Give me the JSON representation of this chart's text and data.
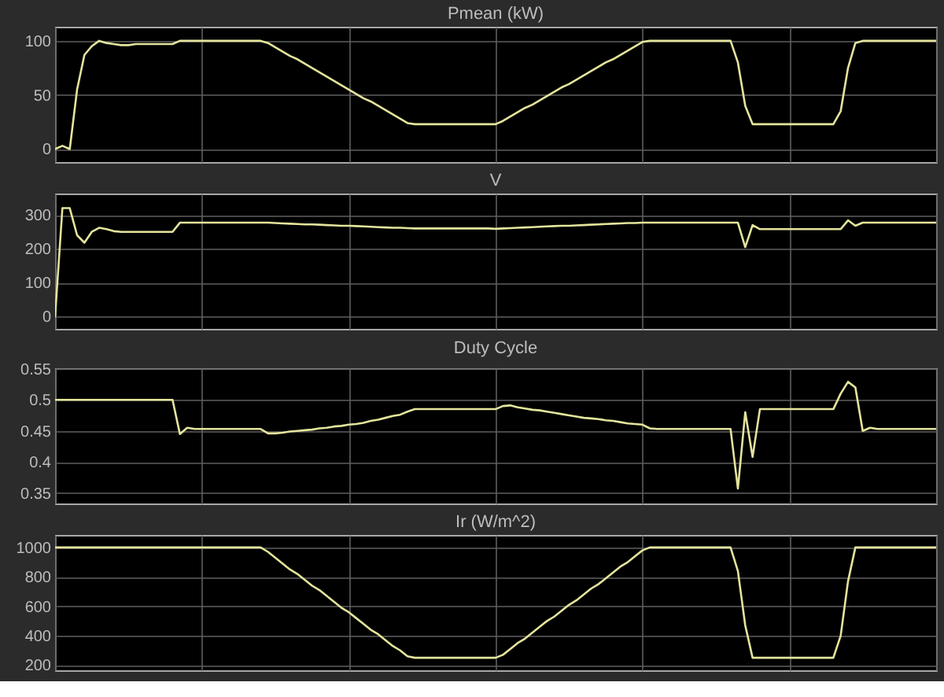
{
  "chart_data": [
    {
      "type": "line",
      "title": "Pmean (kW)",
      "categories": [
        null,
        null,
        null,
        null,
        null,
        null,
        null,
        null,
        null,
        null,
        null,
        null,
        null,
        null,
        null,
        null,
        null,
        null,
        null,
        null,
        null,
        null,
        null,
        null,
        null,
        null,
        null,
        null,
        null,
        null,
        null,
        null,
        null,
        null,
        null,
        null,
        null,
        null,
        null,
        null,
        null,
        null,
        null,
        null,
        null,
        null,
        null,
        null,
        null,
        null,
        null,
        null,
        null,
        null,
        null,
        null,
        null,
        null,
        null,
        null,
        null,
        null,
        null,
        null,
        null,
        null,
        null,
        null,
        null,
        null,
        null,
        null,
        null,
        null,
        null,
        null,
        null,
        null,
        null,
        null,
        null,
        null,
        null,
        null,
        null,
        null,
        null,
        null,
        null,
        null,
        null,
        null,
        null,
        null,
        null,
        null,
        null,
        null,
        null,
        null,
        null,
        null,
        null,
        null,
        null,
        null,
        null,
        null,
        null,
        null,
        null,
        null,
        null,
        null,
        null,
        null,
        null,
        null,
        null,
        null,
        null
      ],
      "series": [
        {
          "color": "#e4e49c",
          "values": [
            0,
            3,
            0,
            55,
            87,
            95,
            100,
            98,
            97,
            96,
            96,
            97,
            97,
            97,
            97,
            97,
            97,
            100,
            100,
            100,
            100,
            100,
            100,
            100,
            100,
            100,
            100,
            100,
            100,
            98,
            94,
            90,
            86,
            83,
            79,
            75,
            71,
            67,
            63,
            59,
            55,
            51,
            47,
            44,
            40,
            36,
            32,
            28,
            24,
            23,
            23,
            23,
            23,
            23,
            23,
            23,
            23,
            23,
            23,
            23,
            23,
            26,
            30,
            34,
            38,
            41,
            45,
            49,
            53,
            57,
            60,
            64,
            68,
            72,
            76,
            80,
            83,
            87,
            91,
            95,
            99,
            100,
            100,
            100,
            100,
            100,
            100,
            100,
            100,
            100,
            100,
            100,
            100,
            80,
            40,
            23,
            23,
            23,
            23,
            23,
            23,
            23,
            23,
            23,
            23,
            23,
            23,
            35,
            75,
            98,
            100,
            100,
            100,
            100,
            100,
            100,
            100,
            100,
            100,
            100,
            100
          ]
        }
      ],
      "ylim": [
        -12,
        113
      ],
      "yticks": [
        0,
        50,
        100
      ],
      "grid": true,
      "tick_labels": "y"
    },
    {
      "type": "line",
      "title": "V",
      "categories": [
        null,
        null,
        null,
        null,
        null,
        null,
        null,
        null,
        null,
        null,
        null,
        null,
        null,
        null,
        null,
        null,
        null,
        null,
        null,
        null,
        null,
        null,
        null,
        null,
        null,
        null,
        null,
        null,
        null,
        null,
        null,
        null,
        null,
        null,
        null,
        null,
        null,
        null,
        null,
        null,
        null,
        null,
        null,
        null,
        null,
        null,
        null,
        null,
        null,
        null,
        null,
        null,
        null,
        null,
        null,
        null,
        null,
        null,
        null,
        null,
        null,
        null,
        null,
        null,
        null,
        null,
        null,
        null,
        null,
        null,
        null,
        null,
        null,
        null,
        null,
        null,
        null,
        null,
        null,
        null,
        null,
        null,
        null,
        null,
        null,
        null,
        null,
        null,
        null,
        null,
        null,
        null,
        null,
        null,
        null,
        null,
        null,
        null,
        null,
        null,
        null,
        null,
        null,
        null,
        null,
        null,
        null,
        null,
        null,
        null,
        null,
        null,
        null,
        null,
        null,
        null,
        null,
        null,
        null,
        null,
        null
      ],
      "series": [
        {
          "color": "#e4e49c",
          "values": [
            0,
            320,
            320,
            240,
            218,
            250,
            262,
            258,
            252,
            250,
            250,
            250,
            250,
            250,
            250,
            250,
            250,
            277,
            277,
            277,
            277,
            277,
            277,
            277,
            277,
            277,
            277,
            277,
            277,
            277,
            276,
            275,
            274,
            273,
            272,
            272,
            271,
            270,
            269,
            268,
            268,
            267,
            266,
            265,
            264,
            263,
            262,
            262,
            261,
            260,
            260,
            260,
            260,
            260,
            260,
            260,
            260,
            260,
            260,
            260,
            259,
            260,
            261,
            262,
            263,
            264,
            265,
            266,
            267,
            268,
            268,
            269,
            270,
            271,
            272,
            273,
            274,
            275,
            276,
            276,
            277,
            277,
            277,
            277,
            277,
            277,
            277,
            277,
            277,
            277,
            277,
            277,
            277,
            277,
            205,
            270,
            258,
            258,
            258,
            258,
            258,
            258,
            258,
            258,
            258,
            258,
            258,
            258,
            284,
            268,
            277,
            277,
            277,
            277,
            277,
            277,
            277,
            277,
            277,
            277,
            277
          ]
        }
      ],
      "ylim": [
        -36,
        363
      ],
      "yticks": [
        0,
        100,
        200,
        300
      ],
      "grid": true,
      "tick_labels": "y"
    },
    {
      "type": "line",
      "title": "Duty Cycle",
      "categories": [
        null,
        null,
        null,
        null,
        null,
        null,
        null,
        null,
        null,
        null,
        null,
        null,
        null,
        null,
        null,
        null,
        null,
        null,
        null,
        null,
        null,
        null,
        null,
        null,
        null,
        null,
        null,
        null,
        null,
        null,
        null,
        null,
        null,
        null,
        null,
        null,
        null,
        null,
        null,
        null,
        null,
        null,
        null,
        null,
        null,
        null,
        null,
        null,
        null,
        null,
        null,
        null,
        null,
        null,
        null,
        null,
        null,
        null,
        null,
        null,
        null,
        null,
        null,
        null,
        null,
        null,
        null,
        null,
        null,
        null,
        null,
        null,
        null,
        null,
        null,
        null,
        null,
        null,
        null,
        null,
        null,
        null,
        null,
        null,
        null,
        null,
        null,
        null,
        null,
        null,
        null,
        null,
        null,
        null,
        null,
        null,
        null,
        null,
        null,
        null,
        null,
        null,
        null,
        null,
        null,
        null,
        null,
        null,
        null,
        null,
        null,
        null,
        null,
        null,
        null,
        null,
        null,
        null,
        null,
        null,
        null
      ],
      "series": [
        {
          "color": "#e4e49c",
          "values": [
            0.5,
            0.5,
            0.5,
            0.5,
            0.5,
            0.5,
            0.5,
            0.5,
            0.5,
            0.5,
            0.5,
            0.5,
            0.5,
            0.5,
            0.5,
            0.5,
            0.5,
            0.445,
            0.455,
            0.453,
            0.453,
            0.453,
            0.453,
            0.453,
            0.453,
            0.453,
            0.453,
            0.453,
            0.453,
            0.446,
            0.446,
            0.447,
            0.449,
            0.45,
            0.451,
            0.452,
            0.454,
            0.455,
            0.457,
            0.458,
            0.46,
            0.461,
            0.463,
            0.466,
            0.468,
            0.471,
            0.474,
            0.476,
            0.481,
            0.485,
            0.485,
            0.485,
            0.485,
            0.485,
            0.485,
            0.485,
            0.485,
            0.485,
            0.485,
            0.485,
            0.485,
            0.49,
            0.491,
            0.488,
            0.486,
            0.484,
            0.483,
            0.481,
            0.479,
            0.477,
            0.475,
            0.473,
            0.471,
            0.47,
            0.469,
            0.467,
            0.466,
            0.464,
            0.462,
            0.461,
            0.46,
            0.454,
            0.453,
            0.453,
            0.453,
            0.453,
            0.453,
            0.453,
            0.453,
            0.453,
            0.453,
            0.453,
            0.453,
            0.357,
            0.48,
            0.408,
            0.485,
            0.485,
            0.485,
            0.485,
            0.485,
            0.485,
            0.485,
            0.485,
            0.485,
            0.485,
            0.485,
            0.51,
            0.529,
            0.52,
            0.45,
            0.455,
            0.453,
            0.453,
            0.453,
            0.453,
            0.453,
            0.453,
            0.453,
            0.453,
            0.453
          ]
        }
      ],
      "ylim": [
        0.333,
        0.551
      ],
      "yticks": [
        0.35,
        0.4,
        0.45,
        0.5,
        0.55
      ],
      "grid": true,
      "tick_labels": "y"
    },
    {
      "type": "line",
      "title": "Ir (W/m^2)",
      "categories": [
        null,
        null,
        null,
        null,
        null,
        null,
        null,
        null,
        null,
        null,
        null,
        null,
        null,
        null,
        null,
        null,
        null,
        null,
        null,
        null,
        null,
        null,
        null,
        null,
        null,
        null,
        null,
        null,
        null,
        null,
        null,
        null,
        null,
        null,
        null,
        null,
        null,
        null,
        null,
        null,
        null,
        null,
        null,
        null,
        null,
        null,
        null,
        null,
        null,
        null,
        null,
        null,
        null,
        null,
        null,
        null,
        null,
        null,
        null,
        null,
        null,
        null,
        null,
        null,
        null,
        null,
        null,
        null,
        null,
        null,
        null,
        null,
        null,
        null,
        null,
        null,
        null,
        null,
        null,
        null,
        null,
        null,
        null,
        null,
        null,
        null,
        null,
        null,
        null,
        null,
        null,
        null,
        null,
        null,
        null,
        null,
        null,
        null,
        null,
        null,
        null,
        null,
        null,
        null,
        null,
        null,
        null,
        null,
        null,
        null,
        null,
        null,
        null,
        null,
        null,
        null,
        null,
        null,
        null,
        null,
        null
      ],
      "series": [
        {
          "color": "#e4e49c",
          "values": [
            1000,
            1000,
            1000,
            1000,
            1000,
            1000,
            1000,
            1000,
            1000,
            1000,
            1000,
            1000,
            1000,
            1000,
            1000,
            1000,
            1000,
            1000,
            1000,
            1000,
            1000,
            1000,
            1000,
            1000,
            1000,
            1000,
            1000,
            1000,
            1000,
            970,
            930,
            890,
            850,
            820,
            780,
            740,
            710,
            670,
            630,
            590,
            560,
            520,
            480,
            440,
            410,
            370,
            330,
            300,
            260,
            250,
            250,
            250,
            250,
            250,
            250,
            250,
            250,
            250,
            250,
            250,
            250,
            270,
            310,
            350,
            380,
            420,
            460,
            500,
            530,
            570,
            610,
            640,
            680,
            720,
            750,
            790,
            830,
            870,
            900,
            940,
            980,
            1000,
            1000,
            1000,
            1000,
            1000,
            1000,
            1000,
            1000,
            1000,
            1000,
            1000,
            1000,
            840,
            470,
            250,
            250,
            250,
            250,
            250,
            250,
            250,
            250,
            250,
            250,
            250,
            250,
            400,
            770,
            1000,
            1000,
            1000,
            1000,
            1000,
            1000,
            1000,
            1000,
            1000,
            1000,
            1000,
            1000
          ]
        }
      ],
      "ylim": [
        165,
        1085
      ],
      "yticks": [
        200,
        400,
        600,
        800,
        1000
      ],
      "grid": true,
      "tick_labels": "y"
    }
  ]
}
